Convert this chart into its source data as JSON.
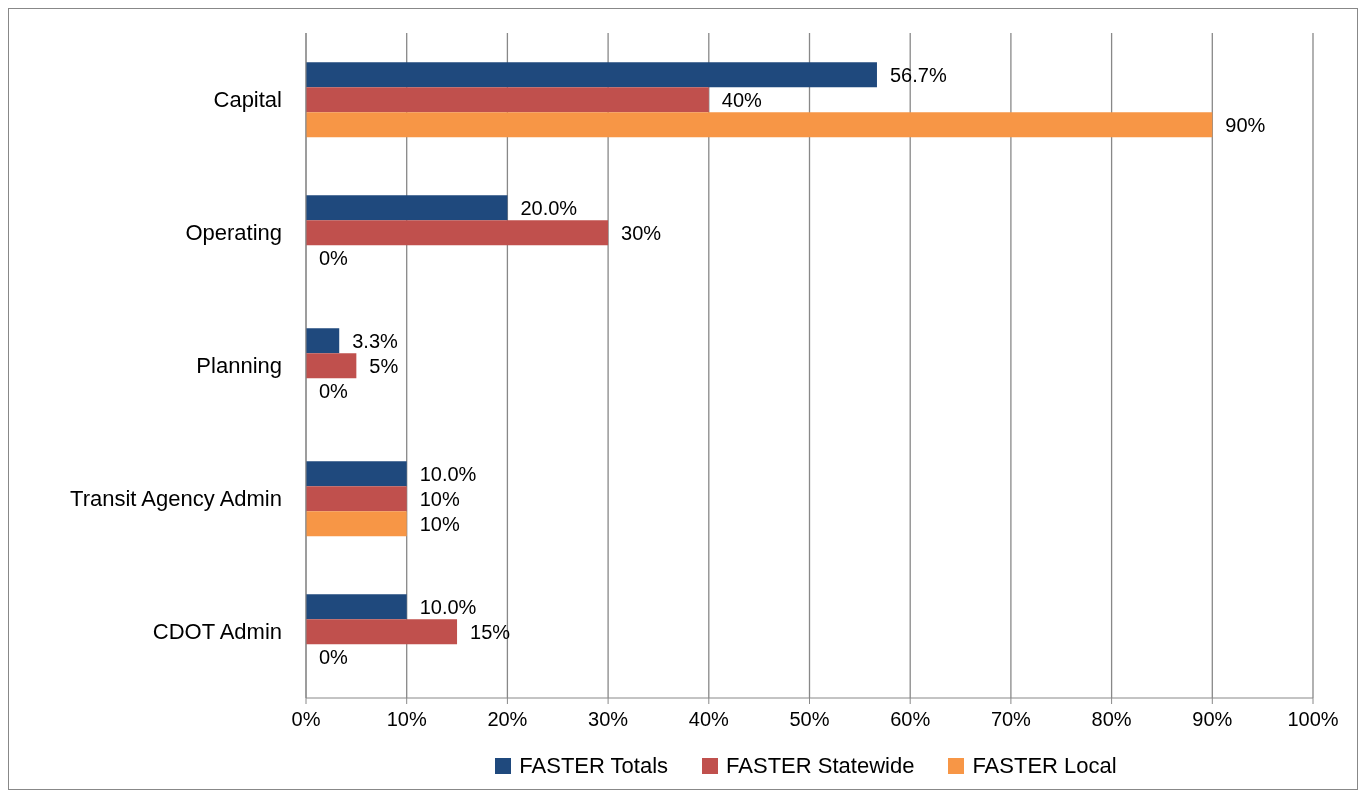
{
  "chart_data": {
    "type": "bar",
    "orientation": "horizontal",
    "categories": [
      "Capital",
      "Operating",
      "Planning",
      "Transit Agency Admin",
      "CDOT Admin"
    ],
    "series": [
      {
        "name": "FASTER Totals",
        "color": "#1f497d",
        "values": [
          56.7,
          20.0,
          3.3,
          10.0,
          10.0
        ],
        "value_labels": [
          "56.7%",
          "20.0%",
          "3.3%",
          "10.0%",
          "10.0%"
        ]
      },
      {
        "name": "FASTER Statewide",
        "color": "#c0504d",
        "values": [
          40,
          30,
          5,
          10,
          15
        ],
        "value_labels": [
          "40%",
          "30%",
          "5%",
          "10%",
          "15%"
        ]
      },
      {
        "name": "FASTER Local",
        "color": "#f79646",
        "values": [
          90,
          0,
          0,
          10,
          0
        ],
        "value_labels": [
          "90%",
          "0%",
          "0%",
          "10%",
          "0%"
        ]
      }
    ],
    "xlim": [
      0,
      100
    ],
    "xticks": [
      {
        "value": 0,
        "label": "0%"
      },
      {
        "value": 10,
        "label": "10%"
      },
      {
        "value": 20,
        "label": "20%"
      },
      {
        "value": 30,
        "label": "30%"
      },
      {
        "value": 40,
        "label": "40%"
      },
      {
        "value": 50,
        "label": "50%"
      },
      {
        "value": 60,
        "label": "60%"
      },
      {
        "value": 70,
        "label": "70%"
      },
      {
        "value": 80,
        "label": "80%"
      },
      {
        "value": 90,
        "label": "90%"
      },
      {
        "value": 100,
        "label": "100%"
      }
    ],
    "grid": "x",
    "legend": "bottom"
  }
}
